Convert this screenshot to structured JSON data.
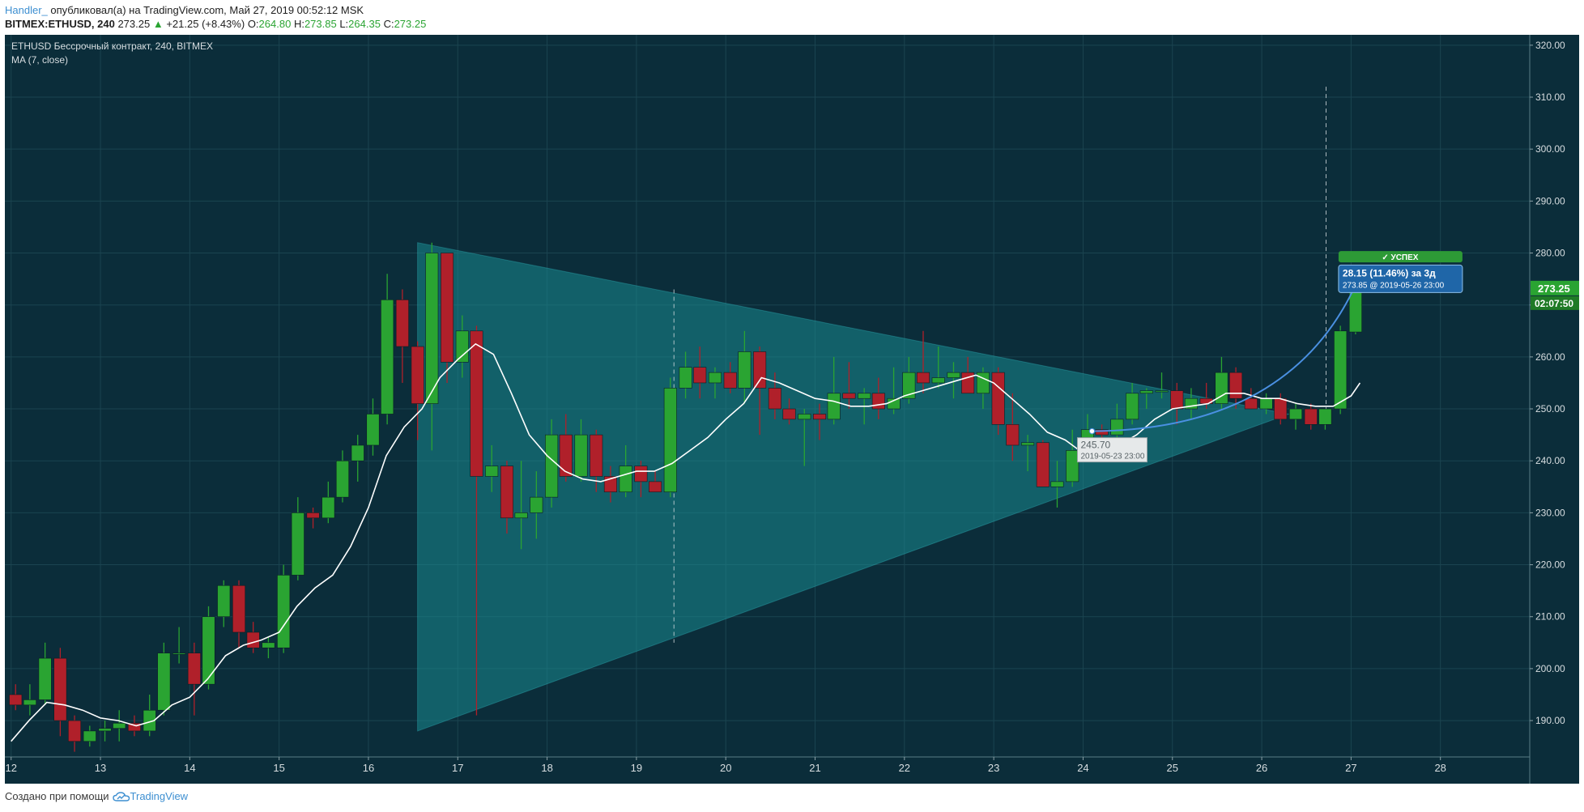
{
  "header": {
    "line1": {
      "author": "Handler_",
      "published": "опубликовал(а) на TradingView.com, Май 27, 2019 00:52:12 MSK"
    },
    "line2": {
      "symbol": "BITMEX:ETHUSD, 240",
      "price": "273.25",
      "arrow": "▲",
      "change": "+21.25 (+8.43%)",
      "o_label": "O:",
      "o": "264.80",
      "h_label": "H:",
      "h": "273.85",
      "l_label": "L:",
      "l": "264.35",
      "c_label": "C:",
      "c": "273.25"
    }
  },
  "legend": {
    "title": "ETHUSD Бессрочный контракт, 240, BITMEX",
    "indicator": "MA (7, close)"
  },
  "footer": {
    "made_with": "Создано при помощи",
    "brand": "TradingView"
  },
  "colors": {
    "background": "#0b2d3a",
    "grid": "#1b4450",
    "up": "#2aa432",
    "down": "#b0202a",
    "ma": "#ffffff",
    "triangle": "#1a8a90",
    "projection": "#4a90e2",
    "success_badge": "#2d9a36",
    "info_box": "#1f66a8"
  },
  "chart_data": {
    "type": "candlestick",
    "timeframe": "240",
    "x_ticks": [
      "12",
      "13",
      "14",
      "15",
      "16",
      "17",
      "18",
      "19",
      "20",
      "21",
      "22",
      "23",
      "24",
      "25",
      "26",
      "27",
      "28"
    ],
    "y_ticks": [
      "190.00",
      "200.00",
      "210.00",
      "220.00",
      "230.00",
      "240.00",
      "250.00",
      "260.00",
      "270.00",
      "280.00",
      "290.00",
      "300.00",
      "310.00",
      "320.00"
    ],
    "ylim": [
      183,
      322
    ],
    "xlim": [
      11.93,
      29.0
    ],
    "grid": true,
    "candles": [
      {
        "t": 12.05,
        "o": 195,
        "h": 197,
        "l": 192,
        "c": 193
      },
      {
        "t": 12.21,
        "o": 193,
        "h": 197,
        "l": 191,
        "c": 194
      },
      {
        "t": 12.38,
        "o": 194,
        "h": 205,
        "l": 193,
        "c": 202
      },
      {
        "t": 12.55,
        "o": 202,
        "h": 204,
        "l": 187,
        "c": 190
      },
      {
        "t": 12.71,
        "o": 190,
        "h": 191,
        "l": 184,
        "c": 186
      },
      {
        "t": 12.88,
        "o": 186,
        "h": 189,
        "l": 185,
        "c": 188
      },
      {
        "t": 13.05,
        "o": 188,
        "h": 190,
        "l": 186,
        "c": 188.5
      },
      {
        "t": 13.21,
        "o": 188.5,
        "h": 192,
        "l": 186,
        "c": 189.5
      },
      {
        "t": 13.38,
        "o": 189.5,
        "h": 191,
        "l": 187,
        "c": 188
      },
      {
        "t": 13.55,
        "o": 188,
        "h": 195,
        "l": 187,
        "c": 192
      },
      {
        "t": 13.71,
        "o": 192,
        "h": 205,
        "l": 191,
        "c": 203
      },
      {
        "t": 13.88,
        "o": 203,
        "h": 208,
        "l": 201,
        "c": 203
      },
      {
        "t": 14.05,
        "o": 203,
        "h": 205,
        "l": 191,
        "c": 197
      },
      {
        "t": 14.21,
        "o": 197,
        "h": 212,
        "l": 196,
        "c": 210
      },
      {
        "t": 14.38,
        "o": 210,
        "h": 217,
        "l": 208,
        "c": 216
      },
      {
        "t": 14.55,
        "o": 216,
        "h": 217,
        "l": 204,
        "c": 207
      },
      {
        "t": 14.71,
        "o": 207,
        "h": 209,
        "l": 203,
        "c": 204
      },
      {
        "t": 14.88,
        "o": 204,
        "h": 206,
        "l": 202,
        "c": 205
      },
      {
        "t": 15.05,
        "o": 204,
        "h": 220,
        "l": 203,
        "c": 218
      },
      {
        "t": 15.21,
        "o": 218,
        "h": 233,
        "l": 217,
        "c": 230
      },
      {
        "t": 15.38,
        "o": 230,
        "h": 231,
        "l": 227,
        "c": 229
      },
      {
        "t": 15.55,
        "o": 229,
        "h": 236,
        "l": 228,
        "c": 233
      },
      {
        "t": 15.71,
        "o": 233,
        "h": 242,
        "l": 232,
        "c": 240
      },
      {
        "t": 15.88,
        "o": 240,
        "h": 245,
        "l": 236,
        "c": 243
      },
      {
        "t": 16.05,
        "o": 243,
        "h": 252,
        "l": 241,
        "c": 249
      },
      {
        "t": 16.21,
        "o": 249,
        "h": 276,
        "l": 247,
        "c": 271
      },
      {
        "t": 16.38,
        "o": 271,
        "h": 273,
        "l": 255,
        "c": 262
      },
      {
        "t": 16.55,
        "o": 262,
        "h": 263,
        "l": 244,
        "c": 251
      },
      {
        "t": 16.71,
        "o": 251,
        "h": 282,
        "l": 242,
        "c": 280
      },
      {
        "t": 16.88,
        "o": 280,
        "h": 280,
        "l": 255,
        "c": 259
      },
      {
        "t": 17.05,
        "o": 259,
        "h": 268,
        "l": 256,
        "c": 265
      },
      {
        "t": 17.21,
        "o": 265,
        "h": 266,
        "l": 191,
        "c": 237
      },
      {
        "t": 17.38,
        "o": 237,
        "h": 243,
        "l": 234,
        "c": 239
      },
      {
        "t": 17.55,
        "o": 239,
        "h": 240,
        "l": 226,
        "c": 229
      },
      {
        "t": 17.71,
        "o": 229,
        "h": 240,
        "l": 223,
        "c": 230
      },
      {
        "t": 17.88,
        "o": 230,
        "h": 238,
        "l": 225,
        "c": 233
      },
      {
        "t": 18.05,
        "o": 233,
        "h": 248,
        "l": 231,
        "c": 245
      },
      {
        "t": 18.21,
        "o": 245,
        "h": 249,
        "l": 236,
        "c": 237
      },
      {
        "t": 18.38,
        "o": 237,
        "h": 248,
        "l": 236,
        "c": 245
      },
      {
        "t": 18.55,
        "o": 245,
        "h": 246,
        "l": 234,
        "c": 237
      },
      {
        "t": 18.71,
        "o": 237,
        "h": 239,
        "l": 232,
        "c": 234
      },
      {
        "t": 18.88,
        "o": 234,
        "h": 243,
        "l": 233,
        "c": 239
      },
      {
        "t": 19.05,
        "o": 239,
        "h": 240,
        "l": 233,
        "c": 236
      },
      {
        "t": 19.21,
        "o": 236,
        "h": 238,
        "l": 234,
        "c": 234
      },
      {
        "t": 19.38,
        "o": 234,
        "h": 256,
        "l": 233,
        "c": 254
      },
      {
        "t": 19.55,
        "o": 254,
        "h": 261,
        "l": 252,
        "c": 258
      },
      {
        "t": 19.71,
        "o": 258,
        "h": 262,
        "l": 252,
        "c": 255
      },
      {
        "t": 19.88,
        "o": 255,
        "h": 258,
        "l": 252,
        "c": 257
      },
      {
        "t": 20.05,
        "o": 257,
        "h": 259,
        "l": 253,
        "c": 254
      },
      {
        "t": 20.21,
        "o": 254,
        "h": 265,
        "l": 251,
        "c": 261
      },
      {
        "t": 20.38,
        "o": 261,
        "h": 262,
        "l": 245,
        "c": 254
      },
      {
        "t": 20.55,
        "o": 254,
        "h": 257,
        "l": 248,
        "c": 250
      },
      {
        "t": 20.71,
        "o": 250,
        "h": 252,
        "l": 247,
        "c": 248
      },
      {
        "t": 20.88,
        "o": 248,
        "h": 250,
        "l": 239,
        "c": 249
      },
      {
        "t": 21.05,
        "o": 249,
        "h": 251,
        "l": 244,
        "c": 248
      },
      {
        "t": 21.21,
        "o": 248,
        "h": 260,
        "l": 247,
        "c": 253
      },
      {
        "t": 21.38,
        "o": 253,
        "h": 259,
        "l": 250,
        "c": 252
      },
      {
        "t": 21.55,
        "o": 252,
        "h": 254,
        "l": 247,
        "c": 253
      },
      {
        "t": 21.71,
        "o": 253,
        "h": 256,
        "l": 248,
        "c": 250
      },
      {
        "t": 21.88,
        "o": 250,
        "h": 258,
        "l": 249,
        "c": 252
      },
      {
        "t": 22.05,
        "o": 252,
        "h": 260,
        "l": 251,
        "c": 257
      },
      {
        "t": 22.21,
        "o": 257,
        "h": 265,
        "l": 253,
        "c": 255
      },
      {
        "t": 22.38,
        "o": 255,
        "h": 262,
        "l": 254,
        "c": 256
      },
      {
        "t": 22.55,
        "o": 256,
        "h": 259,
        "l": 252,
        "c": 257
      },
      {
        "t": 22.71,
        "o": 257,
        "h": 260,
        "l": 253,
        "c": 253
      },
      {
        "t": 22.88,
        "o": 253,
        "h": 258,
        "l": 250,
        "c": 257
      },
      {
        "t": 23.05,
        "o": 257,
        "h": 258,
        "l": 245,
        "c": 247
      },
      {
        "t": 23.21,
        "o": 247,
        "h": 253,
        "l": 240,
        "c": 243
      },
      {
        "t": 23.38,
        "o": 243,
        "h": 245,
        "l": 238,
        "c": 243.5
      },
      {
        "t": 23.55,
        "o": 243.5,
        "h": 244,
        "l": 235,
        "c": 235
      },
      {
        "t": 23.71,
        "o": 235,
        "h": 240,
        "l": 231,
        "c": 236
      },
      {
        "t": 23.88,
        "o": 236,
        "h": 246,
        "l": 235,
        "c": 242
      },
      {
        "t": 24.05,
        "o": 242,
        "h": 249,
        "l": 241,
        "c": 246
      },
      {
        "t": 24.21,
        "o": 246,
        "h": 247,
        "l": 242,
        "c": 245
      },
      {
        "t": 24.38,
        "o": 245,
        "h": 251,
        "l": 244,
        "c": 248
      },
      {
        "t": 24.55,
        "o": 248,
        "h": 255,
        "l": 247,
        "c": 253
      },
      {
        "t": 24.71,
        "o": 253,
        "h": 254,
        "l": 250,
        "c": 253.5
      },
      {
        "t": 24.88,
        "o": 253.5,
        "h": 257,
        "l": 252,
        "c": 253.5
      },
      {
        "t": 25.05,
        "o": 253.5,
        "h": 255,
        "l": 247,
        "c": 250
      },
      {
        "t": 25.21,
        "o": 250,
        "h": 254,
        "l": 248,
        "c": 252
      },
      {
        "t": 25.38,
        "o": 252,
        "h": 255,
        "l": 250,
        "c": 251
      },
      {
        "t": 25.55,
        "o": 251,
        "h": 260,
        "l": 250,
        "c": 257
      },
      {
        "t": 25.71,
        "o": 257,
        "h": 258,
        "l": 250,
        "c": 252
      },
      {
        "t": 25.88,
        "o": 252,
        "h": 254,
        "l": 250,
        "c": 250
      },
      {
        "t": 26.05,
        "o": 250,
        "h": 253,
        "l": 249,
        "c": 252
      },
      {
        "t": 26.21,
        "o": 252,
        "h": 253,
        "l": 247,
        "c": 248
      },
      {
        "t": 26.38,
        "o": 248,
        "h": 251,
        "l": 246,
        "c": 250
      },
      {
        "t": 26.55,
        "o": 250,
        "h": 251,
        "l": 246,
        "c": 247
      },
      {
        "t": 26.71,
        "o": 247,
        "h": 250,
        "l": 246,
        "c": 250
      },
      {
        "t": 26.88,
        "o": 250,
        "h": 266,
        "l": 249,
        "c": 265
      },
      {
        "t": 27.05,
        "o": 264.8,
        "h": 273.85,
        "l": 264.35,
        "c": 273.25
      }
    ],
    "ma": [
      [
        12.0,
        186
      ],
      [
        12.2,
        190
      ],
      [
        12.4,
        193.5
      ],
      [
        12.6,
        193
      ],
      [
        12.8,
        192
      ],
      [
        13.0,
        190.5
      ],
      [
        13.2,
        190
      ],
      [
        13.4,
        189
      ],
      [
        13.6,
        190
      ],
      [
        13.8,
        193
      ],
      [
        14.0,
        194.5
      ],
      [
        14.2,
        198
      ],
      [
        14.4,
        202.5
      ],
      [
        14.6,
        204.5
      ],
      [
        14.8,
        205.5
      ],
      [
        15.0,
        207
      ],
      [
        15.2,
        212
      ],
      [
        15.4,
        215.5
      ],
      [
        15.6,
        218
      ],
      [
        15.8,
        223.5
      ],
      [
        16.0,
        231
      ],
      [
        16.2,
        241
      ],
      [
        16.4,
        246.5
      ],
      [
        16.6,
        250
      ],
      [
        16.8,
        256
      ],
      [
        17.0,
        259.5
      ],
      [
        17.2,
        262.5
      ],
      [
        17.4,
        260.5
      ],
      [
        17.6,
        253
      ],
      [
        17.8,
        245
      ],
      [
        18.0,
        241
      ],
      [
        18.2,
        238
      ],
      [
        18.4,
        236.5
      ],
      [
        18.6,
        236
      ],
      [
        18.8,
        237
      ],
      [
        19.0,
        238
      ],
      [
        19.2,
        238
      ],
      [
        19.4,
        239.5
      ],
      [
        19.6,
        242
      ],
      [
        19.8,
        244.5
      ],
      [
        20.0,
        248
      ],
      [
        20.2,
        251
      ],
      [
        20.4,
        256
      ],
      [
        20.6,
        255
      ],
      [
        20.8,
        253.5
      ],
      [
        21.0,
        252
      ],
      [
        21.2,
        251.5
      ],
      [
        21.4,
        250.5
      ],
      [
        21.6,
        250.5
      ],
      [
        21.8,
        251
      ],
      [
        22.0,
        252.5
      ],
      [
        22.2,
        253.5
      ],
      [
        22.4,
        254.5
      ],
      [
        22.6,
        255.5
      ],
      [
        22.8,
        256.5
      ],
      [
        23.0,
        255
      ],
      [
        23.2,
        252
      ],
      [
        23.4,
        249
      ],
      [
        23.6,
        245.5
      ],
      [
        23.8,
        244
      ],
      [
        24.0,
        241.5
      ],
      [
        24.2,
        241.5
      ],
      [
        24.4,
        243
      ],
      [
        24.6,
        245
      ],
      [
        24.8,
        248
      ],
      [
        25.0,
        250
      ],
      [
        25.2,
        250.5
      ],
      [
        25.4,
        251
      ],
      [
        25.6,
        253
      ],
      [
        25.8,
        253
      ],
      [
        26.0,
        252
      ],
      [
        26.2,
        252
      ],
      [
        26.4,
        251
      ],
      [
        26.6,
        250.5
      ],
      [
        26.8,
        250.5
      ],
      [
        27.0,
        252.5
      ],
      [
        27.1,
        255
      ]
    ],
    "triangle": {
      "upper_start": [
        16.55,
        282
      ],
      "apex": [
        26.3,
        249
      ],
      "lower_start": [
        16.55,
        188
      ]
    },
    "markers": [
      {
        "t": 24.1,
        "price": 245.7,
        "label": "245.70",
        "date": "2019-05-23 23:00"
      },
      {
        "t": 27.05,
        "price": 273.85
      }
    ],
    "success_label": "✓ УСПЕХ",
    "measure": {
      "change": "28.15 (11.46%)",
      "duration": "за 3д",
      "price": "273.85",
      "at": "@",
      "date": "2019-05-26  23:00"
    },
    "dashed_lines": [
      {
        "t": 19.42,
        "from": 205,
        "to": 273
      },
      {
        "t": 26.72,
        "from": 248,
        "to": 312
      }
    ],
    "price_label": "273.25",
    "countdown": "02:07:50"
  }
}
